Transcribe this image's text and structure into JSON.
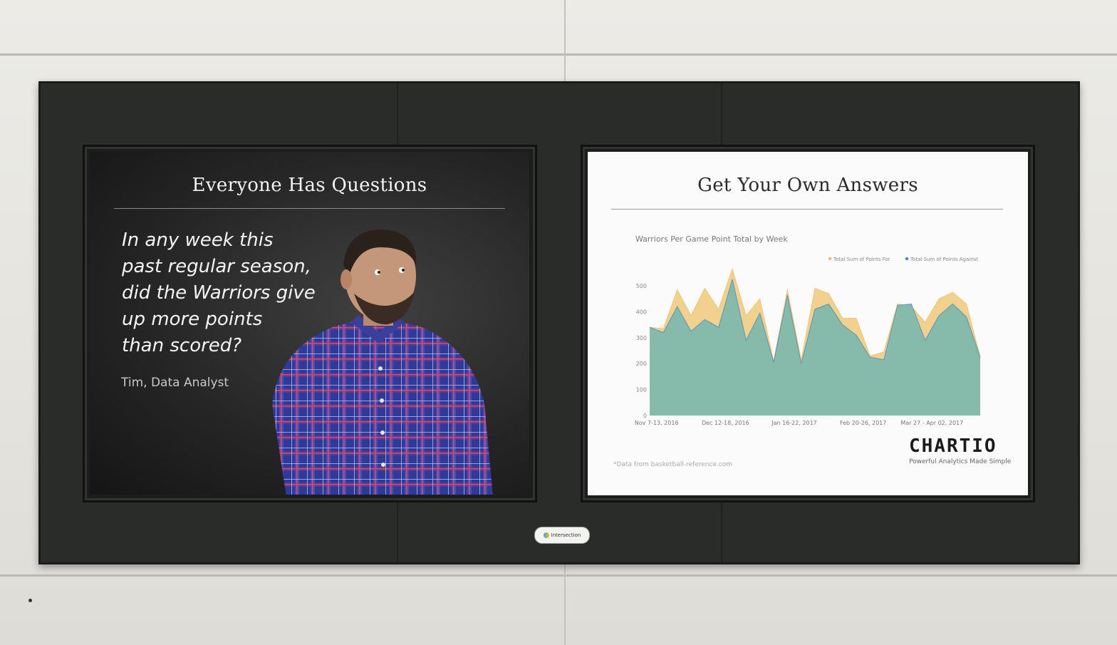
{
  "left_panel": {
    "title": "Everyone Has Questions",
    "question_lines": [
      "In any week this",
      "past regular season,",
      "did the Warriors give",
      "up more points",
      "than scored?"
    ],
    "author": "Tim, Data Analyst"
  },
  "right_panel": {
    "title": "Get Your Own Answers",
    "source_note": "*Data from basketball-reference.com",
    "brand": "CHARTIO",
    "tagline": "Powerful Analytics Made Simple"
  },
  "plaque": {
    "label": "Intersection"
  },
  "colors": {
    "points_for": "#f0c97a",
    "points_against": "#7fb8ad",
    "against_line": "#3a7fc4"
  },
  "chart_data": {
    "type": "area",
    "title": "Warriors Per Game Point Total by Week",
    "ylim": [
      0,
      500
    ],
    "y_ticks": [
      "0",
      "100",
      "200",
      "300",
      "400",
      "500"
    ],
    "x_tick_labels": [
      "Nov 7-13, 2016",
      "Dec 12-18, 2016",
      "Jan 16-22, 2017",
      "Feb 20-26, 2017",
      "Mar 27 - Apr 02, 2017"
    ],
    "x_tick_index": [
      0.5,
      5.5,
      10.5,
      15.5,
      20.5
    ],
    "legend": [
      "Total Sum of Points For",
      "Total Sum of Points Against"
    ],
    "legend_position": "top-right",
    "series": [
      {
        "name": "Total Sum of Points For",
        "values": [
          340,
          335,
          485,
          385,
          490,
          410,
          565,
          385,
          450,
          210,
          485,
          215,
          490,
          470,
          375,
          375,
          230,
          245,
          430,
          420,
          360,
          450,
          475,
          430,
          225
        ]
      },
      {
        "name": "Total Sum of Points Against",
        "values": [
          340,
          320,
          420,
          325,
          370,
          340,
          525,
          290,
          395,
          205,
          465,
          200,
          410,
          430,
          350,
          310,
          225,
          215,
          425,
          430,
          290,
          385,
          430,
          380,
          225
        ]
      }
    ]
  }
}
